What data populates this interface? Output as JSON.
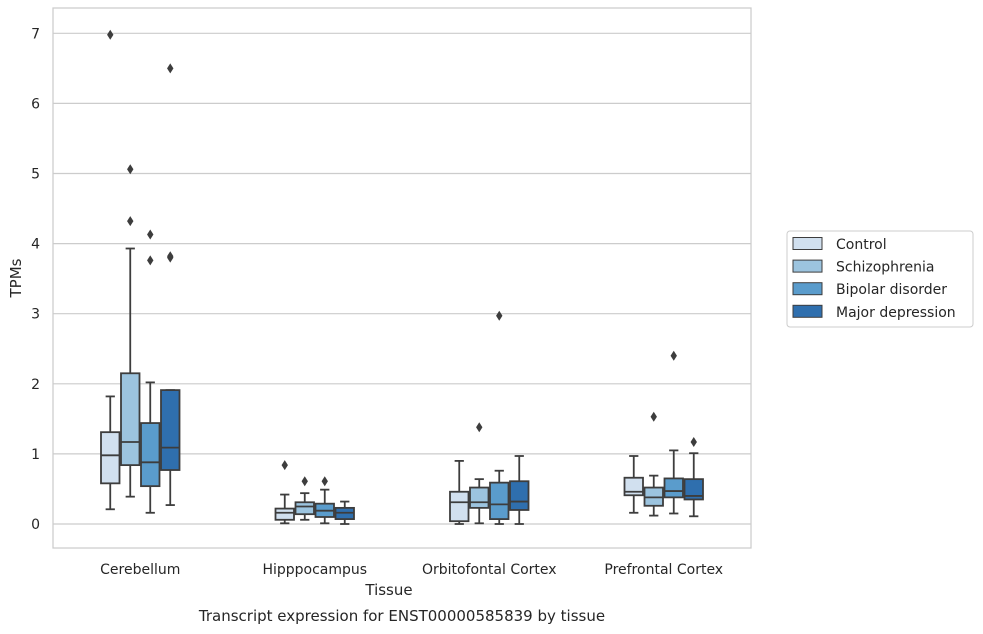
{
  "chart_data": {
    "type": "box",
    "caption": "Transcript expression for ENST00000585839 by tissue",
    "xlabel": "Tissue",
    "ylabel": "TPMs",
    "ylim": [
      -0.33,
      7.35
    ],
    "yticks": [
      0,
      1,
      2,
      3,
      4,
      5,
      6,
      7
    ],
    "categories": [
      "Cerebellum",
      "Hipppocampus",
      "Orbitofontal Cortex",
      "Prefrontal Cortex"
    ],
    "grid": "horizontal",
    "legend_position": "right",
    "series": [
      {
        "name": "Control",
        "color": "#d1e0ef",
        "boxes": [
          {
            "q1": 0.58,
            "median": 0.98,
            "q3": 1.31,
            "whislo": 0.21,
            "whishi": 1.82,
            "fliers": [
              6.98
            ]
          },
          {
            "q1": 0.06,
            "median": 0.16,
            "q3": 0.22,
            "whislo": 0.01,
            "whishi": 0.42,
            "fliers": [
              0.84
            ]
          },
          {
            "q1": 0.04,
            "median": 0.31,
            "q3": 0.46,
            "whislo": 0.0,
            "whishi": 0.9,
            "fliers": []
          },
          {
            "q1": 0.41,
            "median": 0.46,
            "q3": 0.66,
            "whislo": 0.16,
            "whishi": 0.97,
            "fliers": []
          }
        ]
      },
      {
        "name": "Schizophrenia",
        "color": "#9cc4df",
        "boxes": [
          {
            "q1": 0.84,
            "median": 1.17,
            "q3": 2.15,
            "whislo": 0.39,
            "whishi": 3.93,
            "fliers": [
              4.32,
              5.06
            ]
          },
          {
            "q1": 0.14,
            "median": 0.25,
            "q3": 0.31,
            "whislo": 0.06,
            "whishi": 0.44,
            "fliers": [
              0.61
            ]
          },
          {
            "q1": 0.23,
            "median": 0.31,
            "q3": 0.52,
            "whislo": 0.01,
            "whishi": 0.64,
            "fliers": [
              1.38
            ]
          },
          {
            "q1": 0.26,
            "median": 0.38,
            "q3": 0.52,
            "whislo": 0.12,
            "whishi": 0.69,
            "fliers": [
              1.53
            ]
          }
        ]
      },
      {
        "name": "Bipolar disorder",
        "color": "#5a9ccc",
        "boxes": [
          {
            "q1": 0.54,
            "median": 0.88,
            "q3": 1.44,
            "whislo": 0.16,
            "whishi": 2.02,
            "fliers": [
              3.76,
              4.13
            ]
          },
          {
            "q1": 0.1,
            "median": 0.19,
            "q3": 0.29,
            "whislo": 0.01,
            "whishi": 0.49,
            "fliers": [
              0.61
            ]
          },
          {
            "q1": 0.07,
            "median": 0.28,
            "q3": 0.59,
            "whislo": 0.0,
            "whishi": 0.76,
            "fliers": [
              2.97
            ]
          },
          {
            "q1": 0.38,
            "median": 0.47,
            "q3": 0.65,
            "whislo": 0.15,
            "whishi": 1.05,
            "fliers": [
              2.4
            ]
          }
        ]
      },
      {
        "name": "Major depression",
        "color": "#2f6fae",
        "boxes": [
          {
            "q1": 0.77,
            "median": 1.09,
            "q3": 1.91,
            "whislo": 0.27,
            "whishi": 1.91,
            "fliers": [
              3.8,
              3.82,
              6.5
            ]
          },
          {
            "q1": 0.07,
            "median": 0.16,
            "q3": 0.23,
            "whislo": 0.0,
            "whishi": 0.32,
            "fliers": []
          },
          {
            "q1": 0.2,
            "median": 0.32,
            "q3": 0.61,
            "whislo": 0.0,
            "whishi": 0.97,
            "fliers": []
          },
          {
            "q1": 0.35,
            "median": 0.4,
            "q3": 0.64,
            "whislo": 0.11,
            "whishi": 1.01,
            "fliers": [
              1.17
            ]
          }
        ]
      }
    ]
  }
}
